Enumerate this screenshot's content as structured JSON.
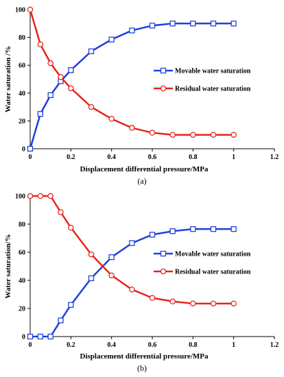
{
  "chart_data": [
    {
      "panel": "(a)",
      "type": "line",
      "xlabel": "Displacement differential pressure/MPa",
      "ylabel": "Water saturation /%",
      "xlim": [
        0,
        1.2
      ],
      "ylim": [
        0,
        100
      ],
      "xticks": [
        "0",
        "0.2",
        "0.4",
        "0.6",
        "0.8",
        "1",
        "1.2"
      ],
      "yticks": [
        "0",
        "20",
        "40",
        "60",
        "80",
        "100"
      ],
      "grid": false,
      "legend_position": "center-right",
      "series": [
        {
          "name": "Movable water saturation",
          "color": "#1f3fdc",
          "marker": "square",
          "x": [
            0,
            0.05,
            0.1,
            0.15,
            0.2,
            0.3,
            0.4,
            0.5,
            0.6,
            0.7,
            0.8,
            0.9,
            1.0
          ],
          "y": [
            0,
            25,
            38.5,
            48.5,
            56.5,
            70,
            78.5,
            85,
            88.5,
            90,
            90,
            90,
            90
          ]
        },
        {
          "name": "Residual water saturation",
          "color": "#e8231d",
          "marker": "circle",
          "x": [
            0,
            0.05,
            0.1,
            0.15,
            0.2,
            0.3,
            0.4,
            0.5,
            0.6,
            0.7,
            0.8,
            0.9,
            1.0
          ],
          "y": [
            100,
            75,
            61.5,
            51.5,
            43.5,
            30,
            21.5,
            15,
            11.5,
            10,
            10,
            10,
            10
          ]
        }
      ]
    },
    {
      "panel": "(b)",
      "type": "line",
      "xlabel": "Displacement differential pressure/MPa",
      "ylabel": "Water saturation/%",
      "xlim": [
        0,
        1.2
      ],
      "ylim": [
        0,
        100
      ],
      "xticks": [
        "0",
        "0.2",
        "0.4",
        "0.6",
        "0.8",
        "1",
        "1.2"
      ],
      "yticks": [
        "0",
        "20",
        "40",
        "60",
        "80",
        "100"
      ],
      "grid": false,
      "legend_position": "center-right",
      "series": [
        {
          "name": "Movable water saturation",
          "color": "#1f3fdc",
          "marker": "square",
          "x": [
            0,
            0.05,
            0.1,
            0.15,
            0.2,
            0.3,
            0.4,
            0.5,
            0.6,
            0.7,
            0.8,
            0.9,
            1.0
          ],
          "y": [
            0,
            0,
            0,
            11.5,
            22.5,
            41.5,
            56.5,
            66.5,
            72.5,
            75,
            76.5,
            76.5,
            76.5
          ]
        },
        {
          "name": "Residual water saturation",
          "color": "#e8231d",
          "marker": "circle",
          "x": [
            0,
            0.05,
            0.1,
            0.15,
            0.2,
            0.3,
            0.4,
            0.5,
            0.6,
            0.7,
            0.8,
            0.9,
            1.0
          ],
          "y": [
            100,
            100,
            100,
            88.5,
            77.5,
            58.5,
            43.5,
            33.5,
            27.5,
            25,
            23.5,
            23.5,
            23.5
          ]
        }
      ]
    }
  ]
}
